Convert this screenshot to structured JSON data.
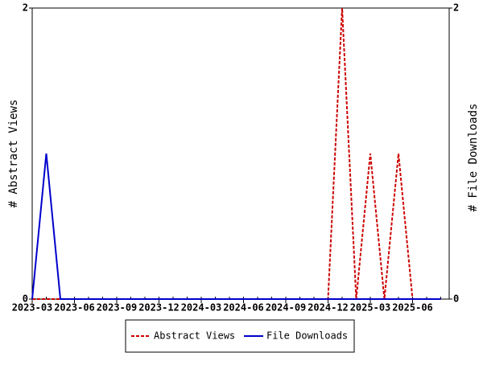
{
  "chart_data": {
    "type": "line",
    "x": [
      "2023-03",
      "2023-04",
      "2023-05",
      "2023-06",
      "2023-07",
      "2023-08",
      "2023-09",
      "2023-10",
      "2023-11",
      "2023-12",
      "2024-01",
      "2024-02",
      "2024-03",
      "2024-04",
      "2024-05",
      "2024-06",
      "2024-07",
      "2024-08",
      "2024-09",
      "2024-10",
      "2024-11",
      "2024-12",
      "2025-01",
      "2025-02",
      "2025-03",
      "2025-04",
      "2025-05",
      "2025-06",
      "2025-07",
      "2025-08"
    ],
    "xlim": [
      "2023-03",
      "2025-08"
    ],
    "xticks": [
      "2023-03",
      "2023-06",
      "2023-09",
      "2023-12",
      "2024-03",
      "2024-06",
      "2024-09",
      "2024-12",
      "2025-03",
      "2025-06"
    ],
    "ylabel": "# Abstract Views",
    "y2label": "# File Downloads",
    "ylim": [
      0,
      2
    ],
    "yticks": [
      0,
      2
    ],
    "y2lim": [
      0,
      2
    ],
    "y2ticks": [
      0,
      2
    ],
    "series": [
      {
        "name": "Abstract Views",
        "color": "#cc0000",
        "dash": true,
        "values": [
          0,
          0,
          0,
          0,
          0,
          0,
          0,
          0,
          0,
          0,
          0,
          0,
          0,
          0,
          0,
          0,
          0,
          0,
          0,
          0,
          0,
          0,
          2,
          0,
          1,
          0,
          1,
          0,
          0,
          0
        ]
      },
      {
        "name": "File Downloads",
        "color": "#0000cc",
        "axis": "y2",
        "values": [
          0,
          1,
          0,
          0,
          0,
          0,
          0,
          0,
          0,
          0,
          0,
          0,
          0,
          0,
          0,
          0,
          0,
          0,
          0,
          0,
          0,
          0,
          0,
          0,
          0,
          0,
          0,
          0,
          0,
          0
        ]
      }
    ]
  }
}
